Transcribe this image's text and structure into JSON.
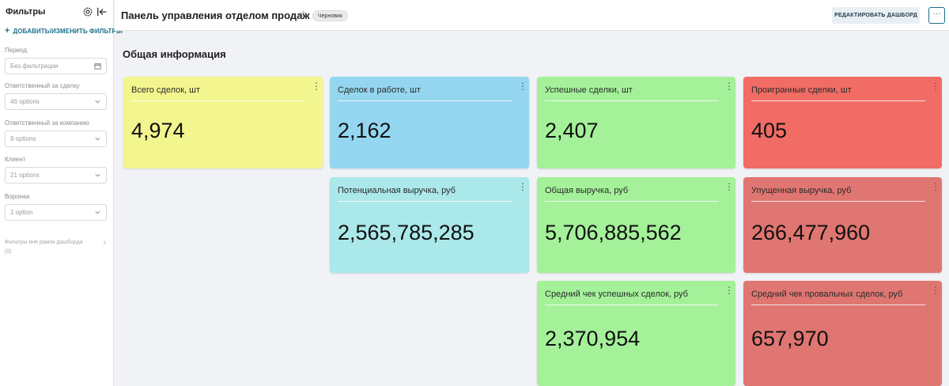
{
  "sidebar": {
    "title": "Фильтры",
    "add_filters_label": "ДОБАВИТЬ/ИЗМЕНИТЬ ФИЛЬТРЫ",
    "filters": [
      {
        "label": "Период",
        "value": "Без фильтрации",
        "icon": "calendar-icon"
      },
      {
        "label": "Ответственный за сделку",
        "value": "46 options",
        "icon": "chevron-down-icon"
      },
      {
        "label": "Ответственный за компанию",
        "value": "9 options",
        "icon": "chevron-down-icon"
      },
      {
        "label": "Клиент",
        "value": "21 options",
        "icon": "chevron-down-icon"
      },
      {
        "label": "Воронка",
        "value": "1 option",
        "icon": "chevron-down-icon"
      }
    ],
    "outside_filters_label": "Фильтры вне рамок дашборда",
    "outside_filters_count": "(0)"
  },
  "header": {
    "title": "Панель управления отделом продаж",
    "badge": "Черновик",
    "edit_button": "РЕДАКТИРОВАТЬ ДАШБОРД",
    "more_button": "···"
  },
  "section_title": "Общая информация",
  "cards": [
    {
      "title": "Всего сделок, шт",
      "value": "4,974",
      "color": "#f3f58e"
    },
    {
      "title": "Сделок в работе, шт",
      "value": "2,162",
      "color": "#94d6ef"
    },
    {
      "title": "Успешные сделки, шт",
      "value": "2,407",
      "color": "#a4f19a"
    },
    {
      "title": "Проигранные сделки, шт",
      "value": "405",
      "color": "#f06c65"
    },
    {
      "title": "Потенциальная выручка, руб",
      "value": "2,565,785,285",
      "color": "#abe8ea"
    },
    {
      "title": "Общая выручка, руб",
      "value": "5,706,885,562",
      "color": "#a4f19a"
    },
    {
      "title": "Упущенная выручка, руб",
      "value": "266,477,960",
      "color": "#e07671"
    },
    {
      "title": "Средний чек успешных сделок, руб",
      "value": "2,370,954",
      "color": "#a4f19a"
    },
    {
      "title": "Средний чек провальных сделок, руб",
      "value": "657,970",
      "color": "#e07671"
    }
  ]
}
